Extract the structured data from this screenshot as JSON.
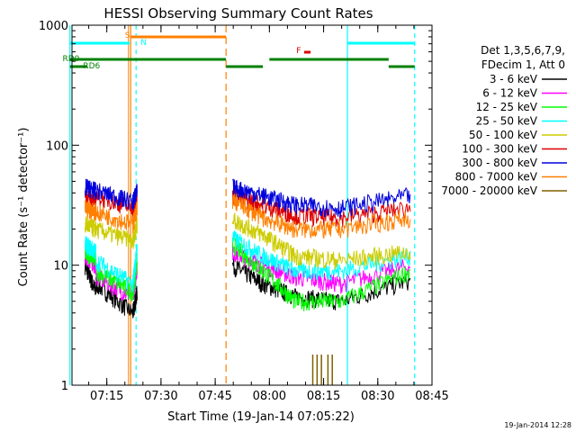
{
  "chart_data": {
    "type": "line",
    "title": "HESSI Observing Summary Count Rates",
    "ylabel": "Count Rate (s⁻¹ detector⁻¹)",
    "xlabel": "Start Time (19-Jan-14 07:05:22)",
    "footer": "19-Jan-2014 12:28",
    "y_scale": "log",
    "ylim": [
      1,
      1000
    ],
    "y_ticks": [
      1,
      10,
      100,
      1000
    ],
    "y_tick_labels": [
      "1",
      "10",
      "100",
      "1000"
    ],
    "xlim": [
      "07:05:22",
      "08:45:00"
    ],
    "x_ticks": [
      "07:15",
      "07:30",
      "07:45",
      "08:00",
      "08:15",
      "08:30",
      "08:45"
    ],
    "legend_position": "right",
    "legend_header": [
      "Det 1,3,5,6,7,9,",
      "FDecim 1, Att 0"
    ],
    "series": [
      {
        "name": "3 - 6 keV",
        "color": "#000000",
        "values": [
          [
            7.15,
            10,
            7.2,
            6
          ],
          [
            7.2,
            7,
            7.37,
            4
          ],
          [
            7.37,
            4,
            7.39,
            6
          ],
          [
            7.83,
            10,
            7.97,
            7
          ],
          [
            7.97,
            7,
            8.12,
            5.5
          ],
          [
            8.12,
            5.5,
            8.33,
            5
          ],
          [
            8.33,
            5,
            8.65,
            7.5
          ]
        ]
      },
      {
        "name": "6 - 12 keV",
        "color": "#ff00ff",
        "values": [
          [
            7.15,
            12,
            7.2,
            10
          ],
          [
            7.2,
            8,
            7.37,
            5.5
          ],
          [
            7.37,
            5.5,
            7.39,
            10
          ],
          [
            7.83,
            13,
            7.97,
            10
          ],
          [
            7.97,
            10,
            8.12,
            8
          ],
          [
            8.12,
            8,
            8.33,
            7
          ],
          [
            8.33,
            7,
            8.65,
            10
          ]
        ]
      },
      {
        "name": "12 - 25 keV",
        "color": "#00ff00",
        "values": [
          [
            7.15,
            13,
            7.2,
            11
          ],
          [
            7.2,
            9,
            7.37,
            6
          ],
          [
            7.37,
            6,
            7.39,
            11
          ],
          [
            7.83,
            15,
            7.97,
            9
          ],
          [
            7.97,
            9,
            8.12,
            5
          ],
          [
            8.12,
            5,
            8.33,
            5
          ],
          [
            8.33,
            5,
            8.65,
            9
          ]
        ]
      },
      {
        "name": "25 - 50 keV",
        "color": "#00ffff",
        "values": [
          [
            7.15,
            15,
            7.2,
            13
          ],
          [
            7.2,
            11,
            7.37,
            7
          ],
          [
            7.37,
            7,
            7.39,
            14
          ],
          [
            7.83,
            17,
            7.97,
            12
          ],
          [
            7.97,
            12,
            8.12,
            9
          ],
          [
            8.12,
            9,
            8.33,
            9
          ],
          [
            8.33,
            9,
            8.65,
            12
          ]
        ]
      },
      {
        "name": "50 - 100 keV",
        "color": "#cccc00",
        "values": [
          [
            7.15,
            22,
            7.2,
            20
          ],
          [
            7.2,
            20,
            7.37,
            16
          ],
          [
            7.37,
            16,
            7.39,
            22
          ],
          [
            7.83,
            24,
            7.97,
            18
          ],
          [
            7.97,
            18,
            8.12,
            12
          ],
          [
            8.12,
            12,
            8.33,
            11
          ],
          [
            8.33,
            11,
            8.65,
            13
          ]
        ]
      },
      {
        "name": "100 - 300 keV",
        "color": "#dd0000",
        "values": [
          [
            7.15,
            38,
            7.2,
            35
          ],
          [
            7.2,
            38,
            7.37,
            30
          ],
          [
            7.37,
            30,
            7.39,
            38
          ],
          [
            7.83,
            38,
            7.97,
            32
          ],
          [
            7.97,
            32,
            8.12,
            26
          ],
          [
            8.12,
            26,
            8.33,
            25
          ],
          [
            8.33,
            25,
            8.65,
            30
          ]
        ]
      },
      {
        "name": "300 - 800 keV",
        "color": "#0000dd",
        "values": [
          [
            7.15,
            45,
            7.2,
            42
          ],
          [
            7.2,
            42,
            7.37,
            34
          ],
          [
            7.37,
            34,
            7.39,
            42
          ],
          [
            7.83,
            45,
            7.97,
            38
          ],
          [
            7.97,
            38,
            8.12,
            32
          ],
          [
            8.12,
            32,
            8.33,
            30
          ],
          [
            8.33,
            30,
            8.65,
            38
          ]
        ]
      },
      {
        "name": "800 - 7000 keV",
        "color": "#ff8000",
        "values": [
          [
            7.15,
            30,
            7.2,
            28
          ],
          [
            7.2,
            28,
            7.37,
            22
          ],
          [
            7.37,
            22,
            7.39,
            30
          ],
          [
            7.83,
            35,
            7.97,
            25
          ],
          [
            7.97,
            25,
            8.12,
            20
          ],
          [
            8.12,
            20,
            8.33,
            20
          ],
          [
            8.33,
            20,
            8.65,
            25
          ]
        ]
      },
      {
        "name": "7000 - 20000 keV",
        "color": "#806000",
        "values": []
      }
    ],
    "flags": [
      {
        "label": "S",
        "color": "#ff8000"
      },
      {
        "label": "N",
        "color": "#00ffff"
      },
      {
        "label": "F",
        "color": "#dd0000"
      },
      {
        "label": "RD0",
        "color": "#008000"
      },
      {
        "label": "RD6",
        "color": "#008000"
      }
    ]
  }
}
